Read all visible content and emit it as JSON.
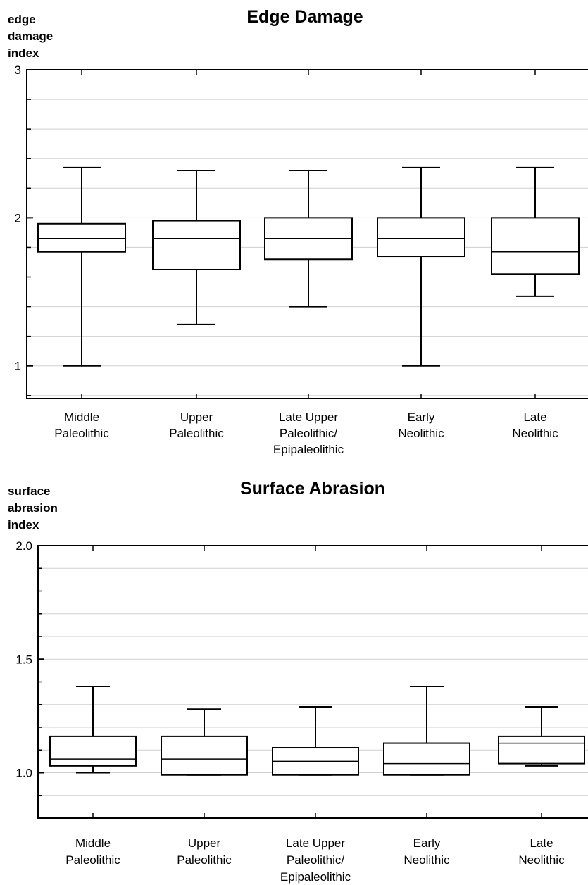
{
  "chart_data": [
    {
      "type": "box",
      "title": "Edge Damage",
      "ylabel": [
        "edge",
        "damage",
        "index"
      ],
      "ylim": [
        0.78,
        3
      ],
      "yticks": [
        {
          "value": 1,
          "label": "1"
        },
        {
          "value": 2,
          "label": "2"
        },
        {
          "value": 3,
          "label": "3"
        }
      ],
      "minor_step": 0.2,
      "grid": true,
      "categories": [
        [
          "Middle",
          "Paleolithic"
        ],
        [
          "Upper",
          "Paleolithic"
        ],
        [
          "Late Upper",
          "Paleolithic/",
          "Epipaleolithic"
        ],
        [
          "Early",
          "Neolithic"
        ],
        [
          "Late",
          "Neolithic"
        ]
      ],
      "boxes": [
        {
          "min": 1.0,
          "q1": 1.77,
          "median": 1.86,
          "q3": 1.96,
          "max": 2.34
        },
        {
          "min": 1.28,
          "q1": 1.65,
          "median": 1.86,
          "q3": 1.98,
          "max": 2.32
        },
        {
          "min": 1.4,
          "q1": 1.72,
          "median": 1.86,
          "q3": 2.0,
          "max": 2.32
        },
        {
          "min": 1.0,
          "q1": 1.74,
          "median": 1.86,
          "q3": 2.0,
          "max": 2.34
        },
        {
          "min": 1.47,
          "q1": 1.62,
          "median": 1.77,
          "q3": 2.0,
          "max": 2.34
        }
      ]
    },
    {
      "type": "box",
      "title": "Surface Abrasion",
      "ylabel": [
        "surface",
        "abrasion",
        "index"
      ],
      "ylim": [
        0.8,
        2.0
      ],
      "yticks": [
        {
          "value": 1.0,
          "label": "1.0"
        },
        {
          "value": 1.5,
          "label": "1.5"
        },
        {
          "value": 2.0,
          "label": "2.0"
        }
      ],
      "minor_step": 0.1,
      "grid": true,
      "categories": [
        [
          "Middle",
          "Paleolithic"
        ],
        [
          "Upper",
          "Paleolithic"
        ],
        [
          "Late Upper",
          "Paleolithic/",
          "Epipaleolithic"
        ],
        [
          "Early",
          "Neolithic"
        ],
        [
          "Late",
          "Neolithic"
        ]
      ],
      "boxes": [
        {
          "min": 1.0,
          "q1": 1.03,
          "median": 1.06,
          "q3": 1.16,
          "max": 1.38
        },
        {
          "min": 0.99,
          "q1": 0.99,
          "median": 1.06,
          "q3": 1.16,
          "max": 1.28
        },
        {
          "min": 0.99,
          "q1": 0.99,
          "median": 1.05,
          "q3": 1.11,
          "max": 1.29
        },
        {
          "min": 0.99,
          "q1": 0.99,
          "median": 1.04,
          "q3": 1.13,
          "max": 1.38
        },
        {
          "min": 1.03,
          "q1": 1.04,
          "median": 1.13,
          "q3": 1.16,
          "max": 1.29
        }
      ]
    }
  ]
}
